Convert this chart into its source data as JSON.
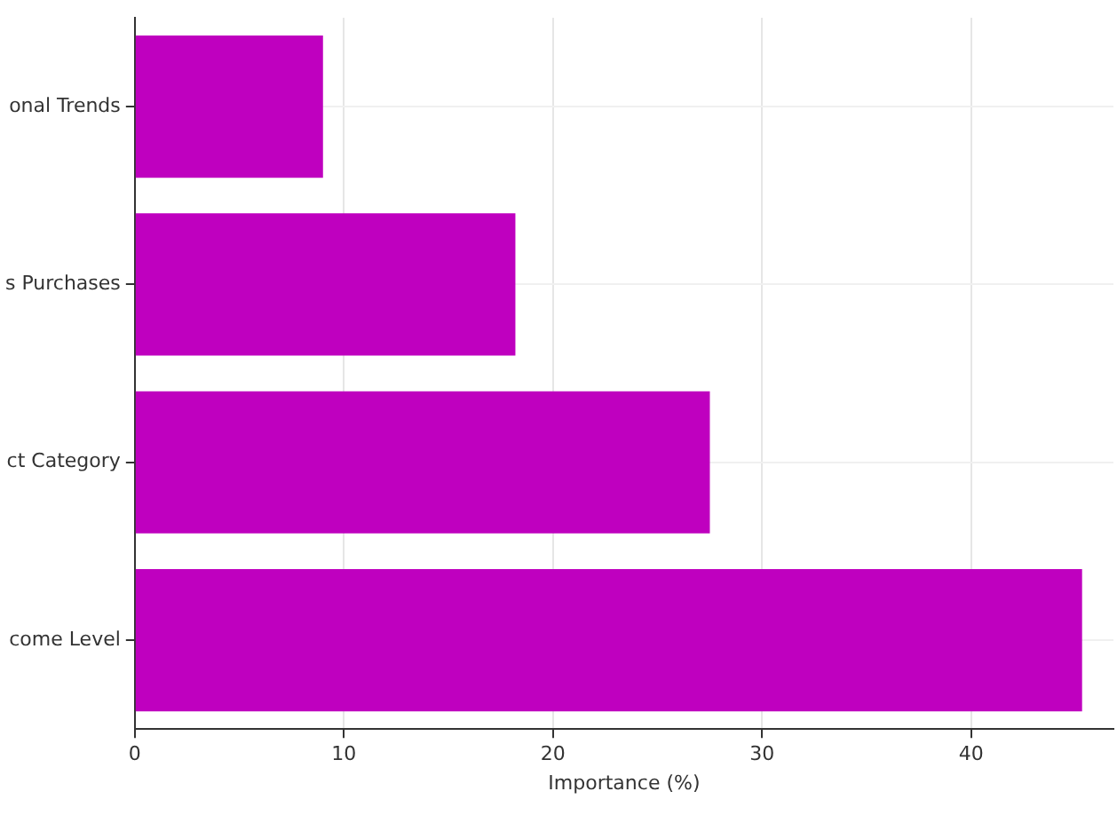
{
  "chart_data": {
    "type": "bar",
    "orientation": "horizontal",
    "xlabel": "Importance (%)",
    "categories": [
      "onal Trends",
      "s Purchases",
      "ct Category",
      "come Level"
    ],
    "values": [
      9.0,
      18.2,
      27.5,
      45.3
    ],
    "color": "#bf00bf",
    "xlim": [
      0,
      46.8
    ],
    "xticks": [
      0,
      10,
      20,
      30,
      40
    ],
    "grid": true
  }
}
